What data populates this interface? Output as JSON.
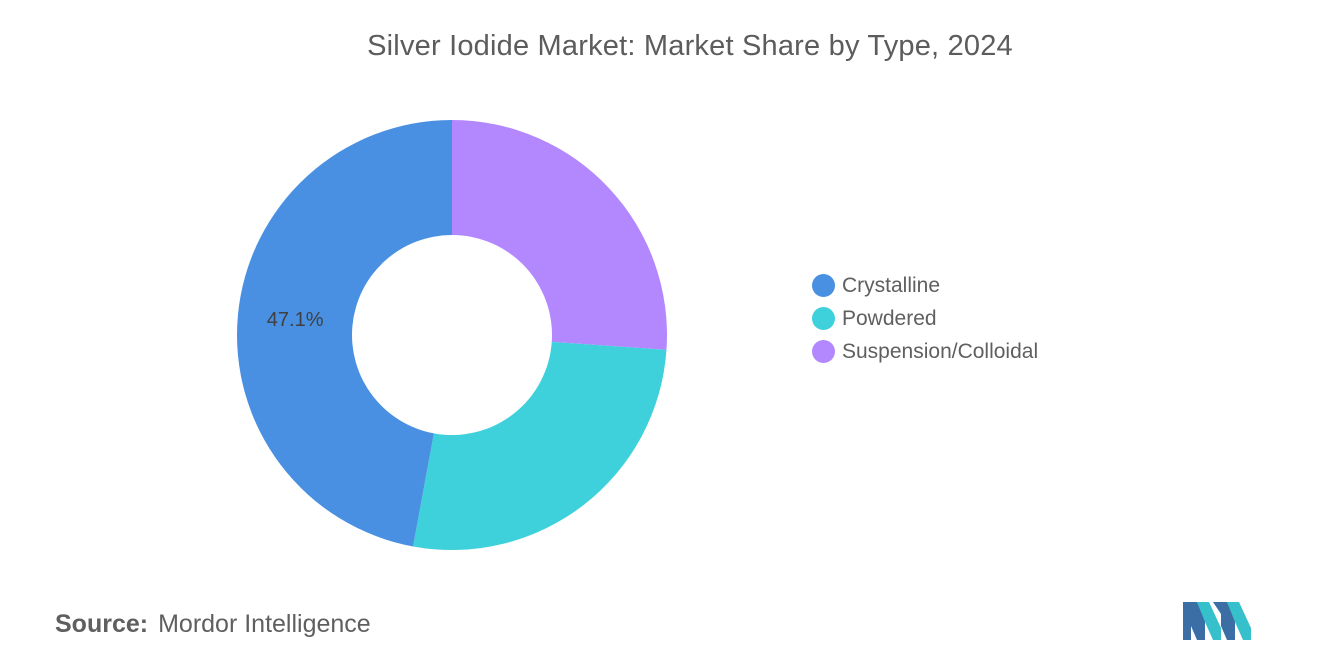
{
  "chart_data": {
    "type": "pie",
    "title": "Silver Iodide Market: Market Share by Type, 2024",
    "categories": [
      "Crystalline",
      "Powdered",
      "Suspension/Colloidal"
    ],
    "values": [
      47.1,
      26.8,
      26.1
    ],
    "colors": [
      "#4a90e2",
      "#3fd1db",
      "#b388ff"
    ],
    "data_labels": [
      "47.1%",
      "",
      ""
    ],
    "donut": true,
    "legend_position": "right"
  },
  "source": {
    "label": "Source:",
    "text": "Mordor Intelligence"
  },
  "logo": {
    "icon": "mordor-intelligence-logo",
    "colors": [
      "#3b6ea5",
      "#35c0cc"
    ]
  }
}
